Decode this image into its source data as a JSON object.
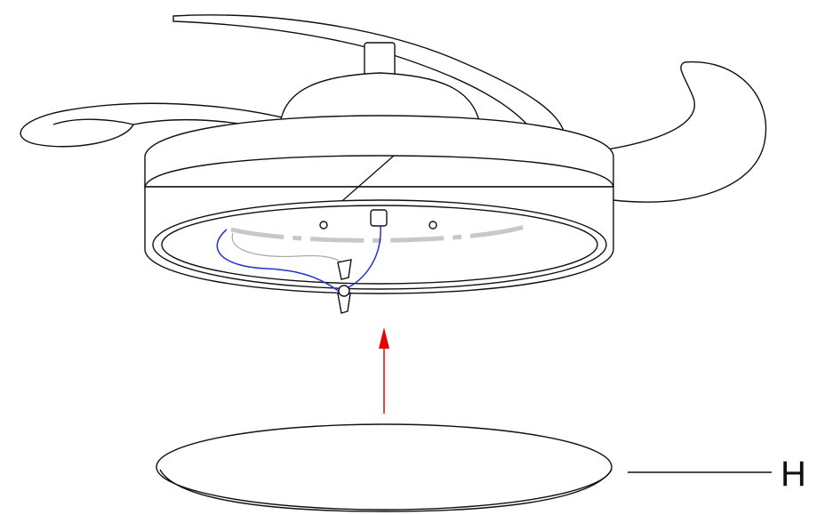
{
  "callout": {
    "label": "H"
  }
}
